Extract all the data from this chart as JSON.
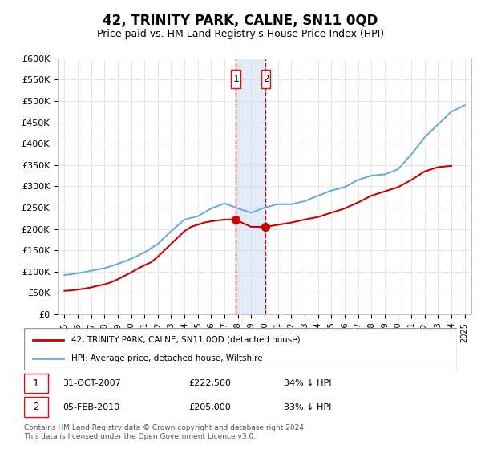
{
  "title": "42, TRINITY PARK, CALNE, SN11 0QD",
  "subtitle": "Price paid vs. HM Land Registry's House Price Index (HPI)",
  "title_fontsize": 12,
  "subtitle_fontsize": 10,
  "legend_line1": "42, TRINITY PARK, CALNE, SN11 0QD (detached house)",
  "legend_line2": "HPI: Average price, detached house, Wiltshire",
  "transaction1_label": "1",
  "transaction1_date": "31-OCT-2007",
  "transaction1_price": "£222,500",
  "transaction1_hpi": "34% ↓ HPI",
  "transaction2_label": "2",
  "transaction2_date": "05-FEB-2010",
  "transaction2_price": "£205,000",
  "transaction2_hpi": "33% ↓ HPI",
  "footnote": "Contains HM Land Registry data © Crown copyright and database right 2024.\nThis data is licensed under the Open Government Licence v3.0.",
  "hpi_color": "#6baed6",
  "property_color": "#cc0000",
  "marker_color": "#cc0000",
  "vline_color": "#cc0000",
  "shade_color": "#c6dbef",
  "ylim": [
    0,
    600000
  ],
  "yticks": [
    0,
    50000,
    100000,
    150000,
    200000,
    250000,
    300000,
    350000,
    400000,
    450000,
    500000,
    550000,
    600000
  ],
  "ytick_labels": [
    "£0",
    "£50K",
    "£100K",
    "£150K",
    "£200K",
    "£250K",
    "£300K",
    "£350K",
    "£400K",
    "£450K",
    "£500K",
    "£550K",
    "£600K"
  ],
  "hpi_years": [
    1995,
    1996,
    1997,
    1998,
    1999,
    2000,
    2001,
    2002,
    2003,
    2004,
    2005,
    2006,
    2007,
    2008,
    2009,
    2010,
    2011,
    2012,
    2013,
    2014,
    2015,
    2016,
    2017,
    2018,
    2019,
    2020,
    2021,
    2022,
    2023,
    2024,
    2025
  ],
  "hpi_values": [
    92000,
    96000,
    102000,
    108000,
    118000,
    130000,
    145000,
    165000,
    195000,
    222000,
    230000,
    248000,
    260000,
    248000,
    238000,
    250000,
    258000,
    258000,
    265000,
    278000,
    290000,
    298000,
    315000,
    325000,
    328000,
    340000,
    375000,
    415000,
    445000,
    475000,
    490000
  ],
  "property_years": [
    1995.0,
    1995.5,
    1996.0,
    1996.5,
    1997.0,
    1997.5,
    1998.0,
    1998.5,
    1999.0,
    1999.5,
    2000.0,
    2000.5,
    2001.0,
    2001.5,
    2002.0,
    2002.5,
    2003.0,
    2003.5,
    2004.0,
    2004.5,
    2005.0,
    2005.5,
    2006.0,
    2006.5,
    2007.0,
    2007.75,
    2009.0,
    2010.1,
    2012.0,
    2013.0,
    2014.0,
    2015.0,
    2016.0,
    2017.0,
    2018.0,
    2019.0,
    2020.0,
    2021.0,
    2022.0,
    2023.0,
    2024.0
  ],
  "property_values": [
    55000,
    56000,
    58000,
    60000,
    63000,
    67000,
    70000,
    75000,
    82000,
    90000,
    98000,
    107000,
    115000,
    122000,
    135000,
    150000,
    165000,
    180000,
    195000,
    205000,
    210000,
    215000,
    218000,
    220000,
    222000,
    222500,
    205000,
    205000,
    215000,
    222000,
    228000,
    238000,
    248000,
    262000,
    278000,
    288000,
    298000,
    315000,
    335000,
    345000,
    348000
  ],
  "sale1_year": 2007.833,
  "sale1_value": 222500,
  "sale2_year": 2010.083,
  "sale2_value": 205000
}
